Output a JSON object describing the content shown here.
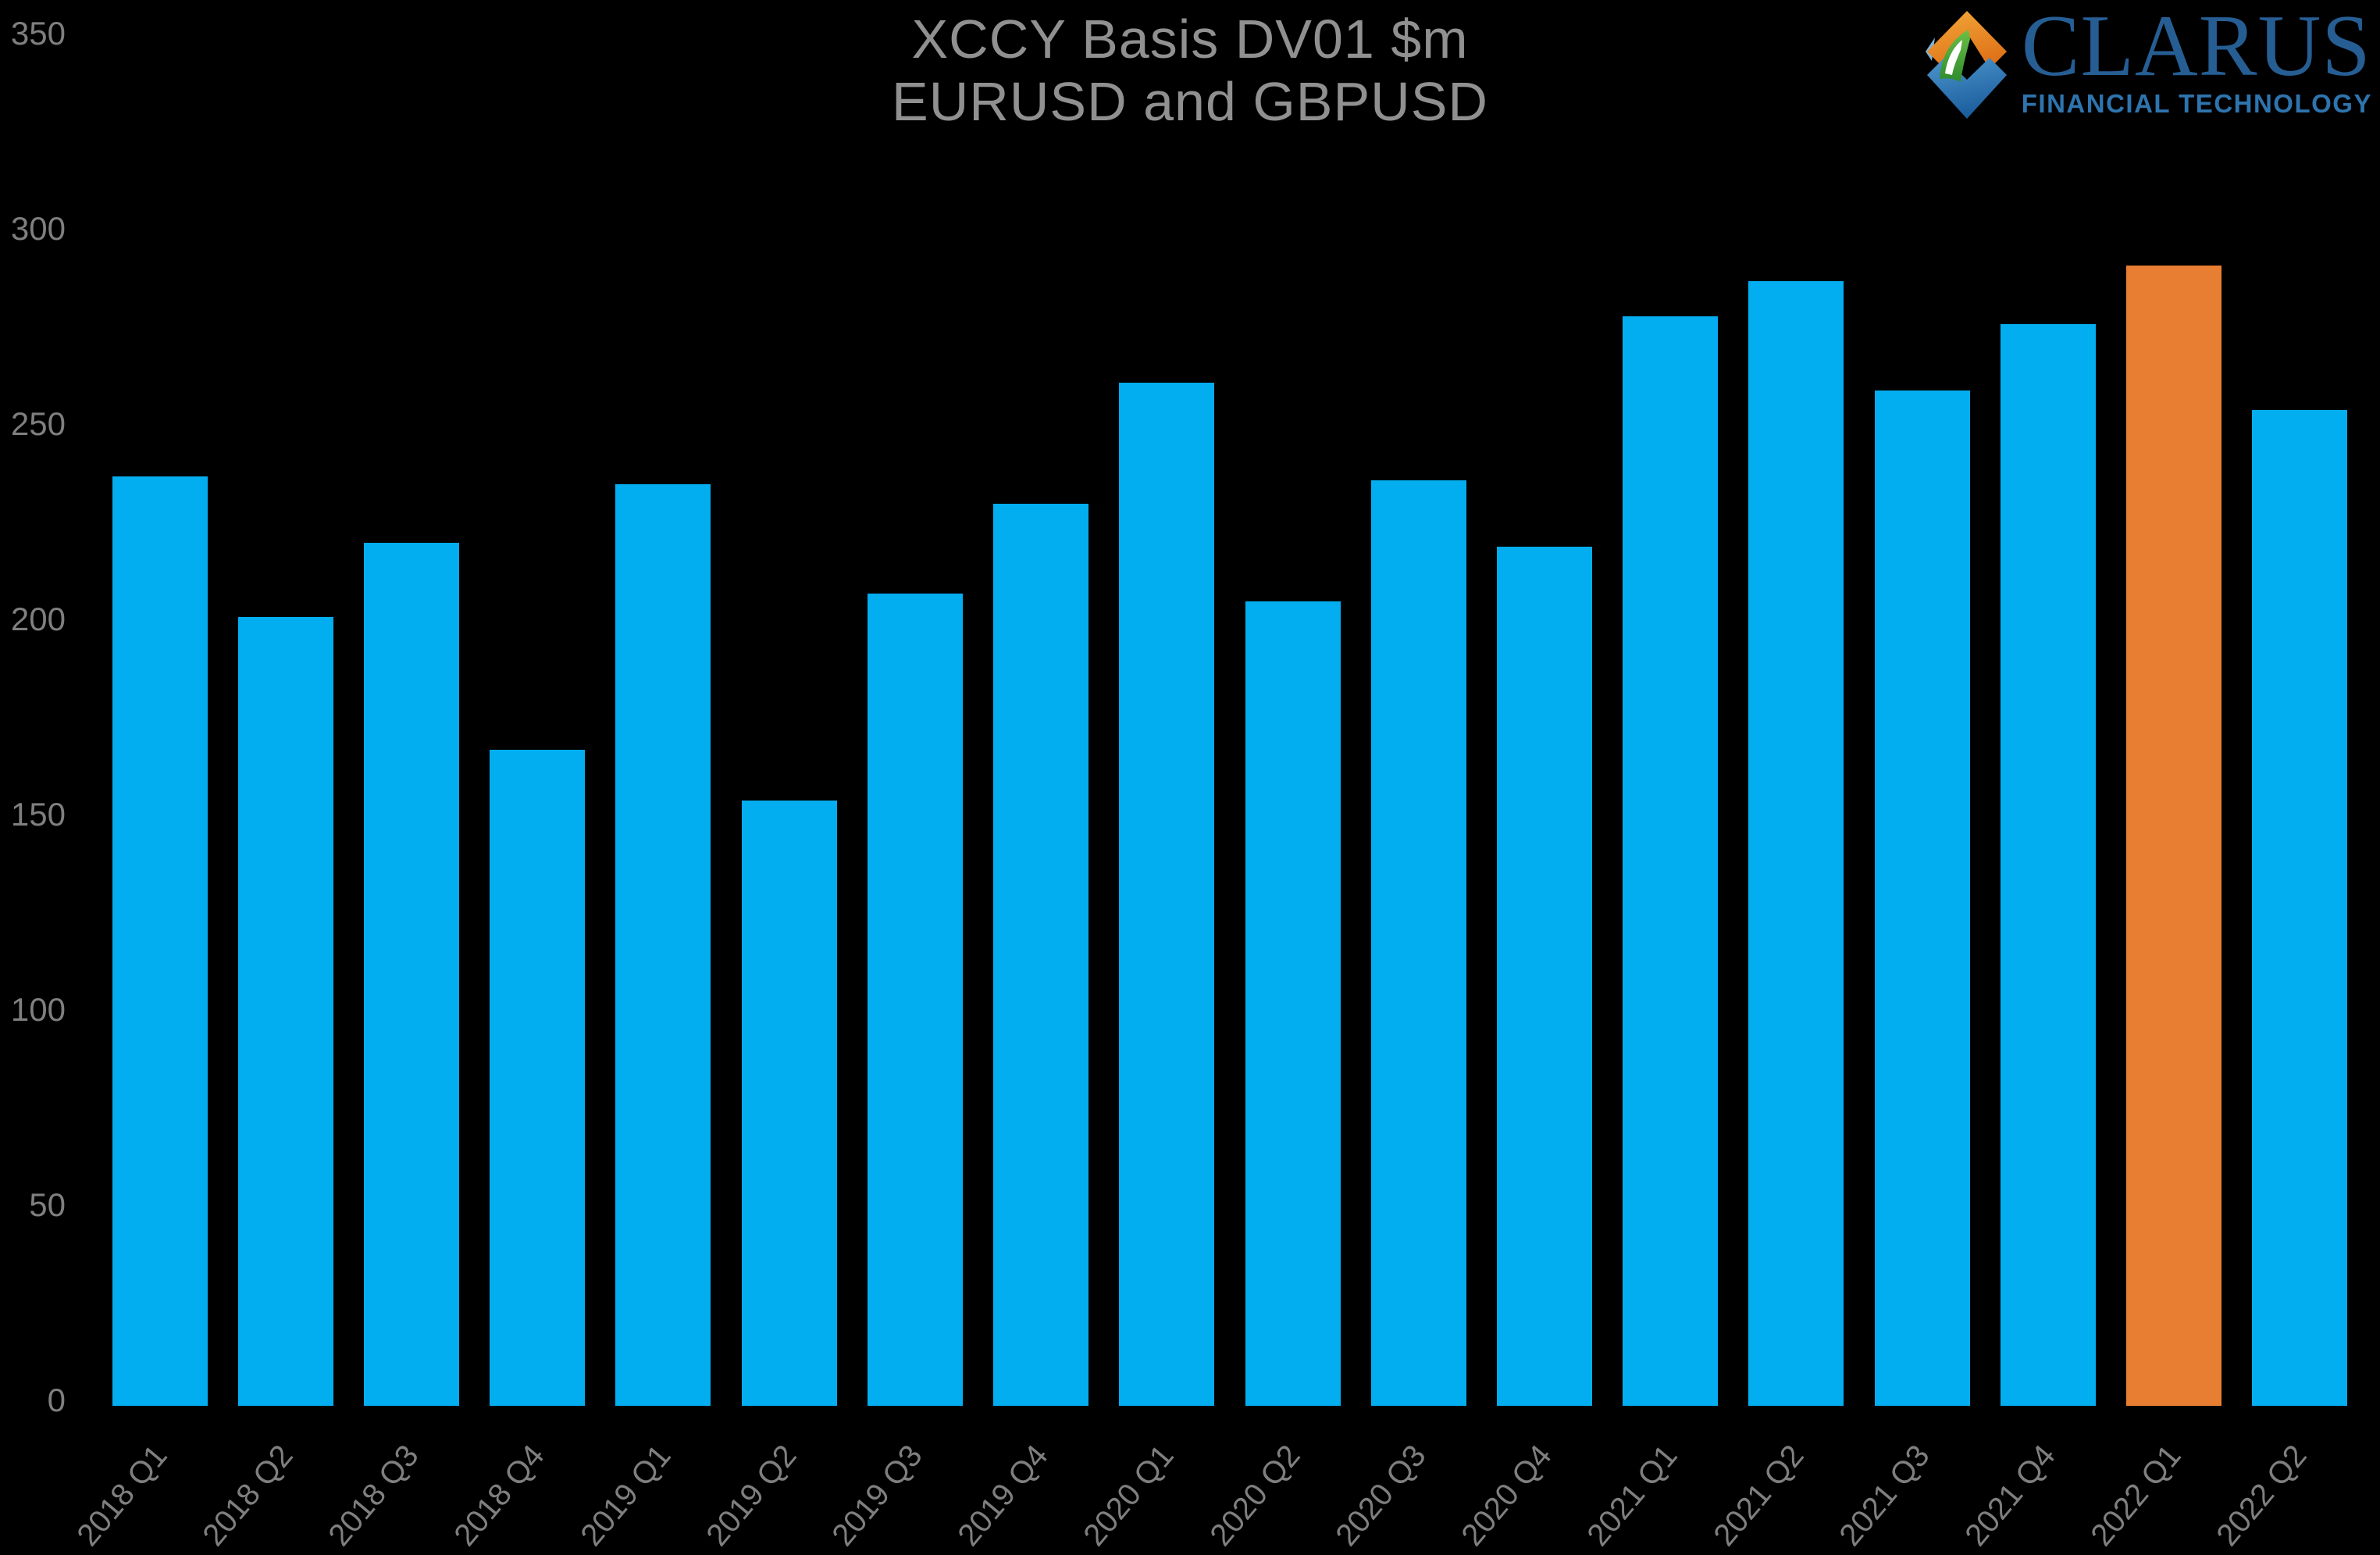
{
  "title": {
    "line1": "XCCY Basis DV01 $m",
    "line2": "EURUSD and GBPUSD"
  },
  "logo": {
    "name": "CLARUS",
    "tagline": "FINANCIAL TECHNOLOGY"
  },
  "colors": {
    "background": "#000000",
    "bar_blue": "#02AEEF",
    "bar_highlight_orange": "#E87E31",
    "axis_text": "#7F7F7F",
    "title_text": "#909090",
    "logo_wordmark_blue": "#265E94",
    "logo_tagline_blue": "#2E74AE",
    "logo_orange_light": "#F2A93B",
    "logo_orange_dark": "#E07318",
    "logo_blue_light": "#4E96CC",
    "logo_blue_dark": "#1B5E9E",
    "logo_green_light": "#6CBF45",
    "logo_green_dark": "#2E8B2E"
  },
  "y_axis": {
    "ticks": [
      350,
      300,
      250,
      200,
      150,
      100,
      50,
      0
    ],
    "min": 0,
    "max": 350
  },
  "chart_data": {
    "type": "bar",
    "title": "XCCY Basis DV01 $m — EURUSD and GBPUSD",
    "xlabel": "",
    "ylabel": "DV01 $m",
    "ylim": [
      0,
      350
    ],
    "grid": false,
    "legend_position": "none",
    "categories": [
      "2018 Q1",
      "2018 Q2",
      "2018 Q3",
      "2018 Q4",
      "2019 Q1",
      "2019 Q2",
      "2019 Q3",
      "2019 Q4",
      "2020 Q1",
      "2020 Q2",
      "2020 Q3",
      "2020 Q4",
      "2021 Q1",
      "2021 Q2",
      "2021 Q3",
      "2021 Q4",
      "2022 Q1",
      "2022 Q2"
    ],
    "values": [
      238,
      202,
      221,
      168,
      236,
      155,
      208,
      231,
      262,
      206,
      237,
      220,
      279,
      288,
      260,
      277,
      292,
      255
    ],
    "highlight_index": 16,
    "highlight_category": "2022 Q1"
  }
}
